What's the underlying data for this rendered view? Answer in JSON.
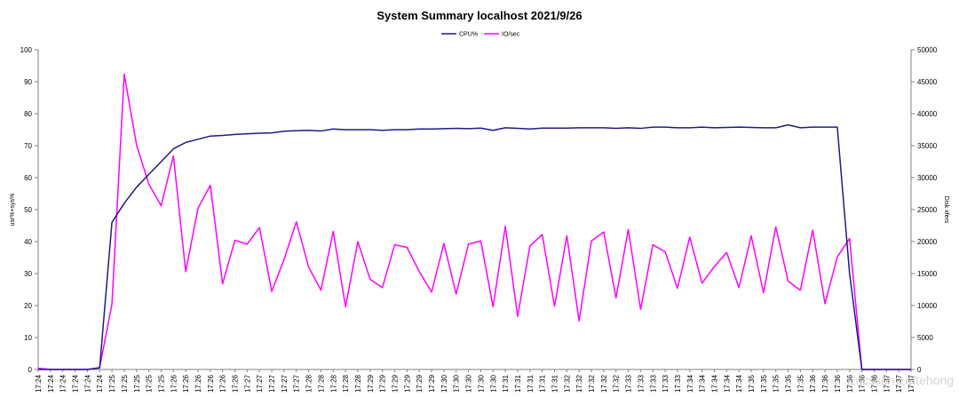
{
  "chart_data": {
    "type": "line",
    "title": "System Summary localhost  2021/9/26",
    "ylabel_left": "usr%+sys%",
    "ylabel_right": "Disk xfers",
    "ylim_left": [
      0,
      100
    ],
    "ylim_right": [
      0,
      50000
    ],
    "yticks_left": [
      "0",
      "10",
      "20",
      "30",
      "40",
      "50",
      "60",
      "70",
      "80",
      "90",
      "100"
    ],
    "yticks_right": [
      "0",
      "5000",
      "10000",
      "15000",
      "20000",
      "25000",
      "30000",
      "35000",
      "40000",
      "45000",
      "50000"
    ],
    "legend_position": "top-center",
    "grid": false,
    "categories": [
      "17:24",
      "17:24",
      "17:24",
      "17:24",
      "17:24",
      "17:24",
      "17:25",
      "17:25",
      "17:25",
      "17:25",
      "17:25",
      "17:26",
      "17:26",
      "17:26",
      "17:26",
      "17:26",
      "17:26",
      "17:27",
      "17:27",
      "17:27",
      "17:27",
      "17:27",
      "17:28",
      "17:28",
      "17:28",
      "17:28",
      "17:28",
      "17:29",
      "17:29",
      "17:29",
      "17:29",
      "17:29",
      "17:29",
      "17:30",
      "17:30",
      "17:30",
      "17:30",
      "17:30",
      "17:31",
      "17:31",
      "17:31",
      "17:31",
      "17:31",
      "17:32",
      "17:32",
      "17:32",
      "17:32",
      "17:32",
      "17:33",
      "17:33",
      "17:33",
      "17:33",
      "17:33",
      "17:34",
      "17:34",
      "17:34",
      "17:34",
      "17:34",
      "17:35",
      "17:35",
      "17:35",
      "17:35",
      "17:35",
      "17:36",
      "17:36",
      "17:36",
      "17:36",
      "17:36",
      "17:36",
      "17:37",
      "17:37",
      "17:37"
    ],
    "series": [
      {
        "name": "CPU%",
        "axis": "left",
        "color": "#1f1a8a",
        "values": [
          0,
          0,
          0,
          0,
          0,
          0.5,
          46,
          52,
          57,
          61,
          65,
          69,
          71,
          72,
          73,
          73.2,
          73.5,
          73.7,
          73.9,
          74,
          74.5,
          74.7,
          74.8,
          74.6,
          75.2,
          75,
          75,
          75,
          74.8,
          75,
          75,
          75.2,
          75.2,
          75.3,
          75.4,
          75.3,
          75.5,
          74.8,
          75.6,
          75.4,
          75.2,
          75.5,
          75.5,
          75.5,
          75.6,
          75.6,
          75.6,
          75.4,
          75.6,
          75.4,
          75.8,
          75.8,
          75.6,
          75.6,
          75.8,
          75.6,
          75.7,
          75.8,
          75.7,
          75.6,
          75.6,
          76.5,
          75.6,
          75.8,
          75.8,
          75.8,
          30,
          0,
          0,
          0,
          0,
          0
        ]
      },
      {
        "name": "IO/sec",
        "axis": "right",
        "color": "#ff00ff",
        "values": [
          200,
          0,
          0,
          0,
          0,
          300,
          10200,
          46200,
          35100,
          29000,
          25600,
          33400,
          15300,
          25200,
          28800,
          13400,
          20200,
          19600,
          22200,
          12200,
          17200,
          23100,
          16000,
          12400,
          21600,
          9800,
          20000,
          14100,
          12800,
          19500,
          19100,
          15300,
          12100,
          19700,
          11800,
          19600,
          20100,
          9800,
          22400,
          8300,
          19300,
          21100,
          9900,
          20900,
          7600,
          20100,
          21500,
          11200,
          21900,
          9400,
          19500,
          18400,
          12700,
          20700,
          13500,
          16100,
          18300,
          12800,
          20900,
          12000,
          22300,
          13800,
          12400,
          21800,
          10300,
          17600,
          20500,
          0,
          0,
          0,
          0,
          0
        ]
      }
    ],
    "watermark": "Ericsson Leftehong"
  }
}
